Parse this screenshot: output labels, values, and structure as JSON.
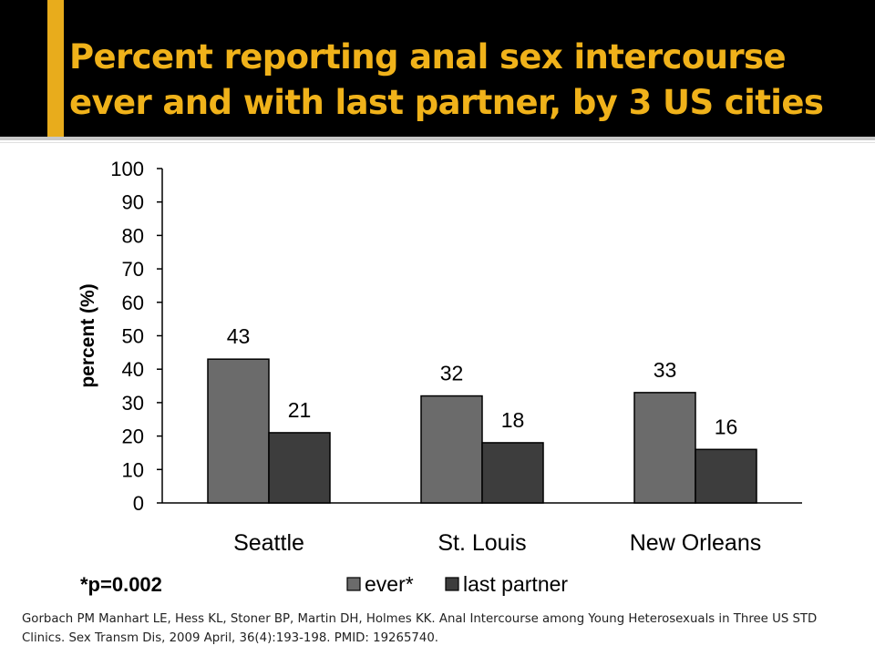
{
  "slide": {
    "title": "Percent reporting anal sex intercourse ever and with last partner, by 3 US cities",
    "citation": "Gorbach PM Manhart LE, Hess KL, Stoner BP, Martin DH, Holmes KK. Anal Intercourse among Young Heterosexuals in Three US STD Clinics. Sex Transm Dis, 2009 April, 36(4):193-198. PMID: 19265740.",
    "footnote": "*p=0.002"
  },
  "colors": {
    "header_bg": "#000000",
    "title": "#f0b21a",
    "accent_bar": "#e8ac1c",
    "ever": "#6b6b6b",
    "last_partner": "#3d3d3d"
  },
  "chart_data": {
    "type": "bar",
    "categories": [
      "Seattle",
      "St. Louis",
      "New Orleans"
    ],
    "series": [
      {
        "name": "ever*",
        "values": [
          43,
          32,
          33
        ]
      },
      {
        "name": "last partner",
        "values": [
          21,
          18,
          16
        ]
      }
    ],
    "ylabel": "percent (%)",
    "ylim": [
      0,
      100
    ],
    "yticks": [
      0,
      10,
      20,
      30,
      40,
      50,
      60,
      70,
      80,
      90,
      100
    ],
    "grid": false,
    "legend": "bottom",
    "data_labels": true
  }
}
